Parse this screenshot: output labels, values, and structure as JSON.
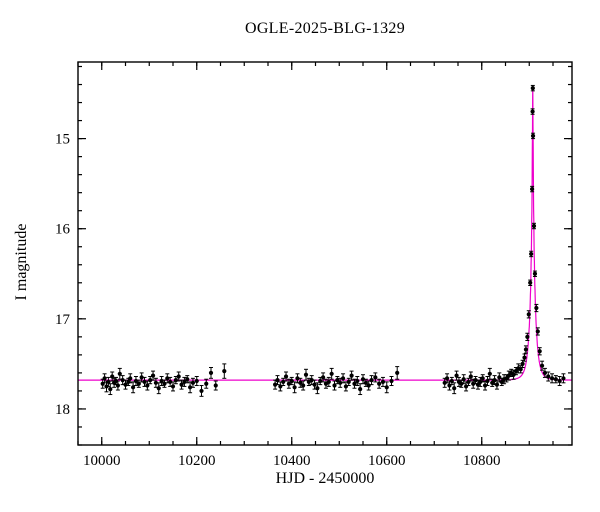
{
  "chart_data": {
    "type": "scatter",
    "title": "OGLE-2025-BLG-1329",
    "xlabel": "HJD - 2450000",
    "ylabel": "I magnitude",
    "xlim": [
      9950,
      10990
    ],
    "ylim_top_to_bottom": [
      14.15,
      18.4
    ],
    "y_axis_inverted": true,
    "x_major_ticks": [
      10000,
      10200,
      10400,
      10600,
      10800
    ],
    "x_minor_step": 50,
    "y_major_ticks": [
      15,
      16,
      17,
      18
    ],
    "y_minor_step": 0.2,
    "grid": false,
    "legend": false,
    "point_color": "#000000",
    "model_color": "#ee00cc",
    "model": {
      "type": "paczynski_microlensing",
      "t0": 10907.4,
      "tE": 11,
      "u0": 0.05,
      "baseline_mag": 17.68
    },
    "points": [
      [
        10002,
        17.72,
        0.05
      ],
      [
        10006,
        17.66,
        0.05
      ],
      [
        10010,
        17.75,
        0.06
      ],
      [
        10014,
        17.7,
        0.05
      ],
      [
        10018,
        17.78,
        0.06
      ],
      [
        10022,
        17.64,
        0.05
      ],
      [
        10026,
        17.71,
        0.05
      ],
      [
        10030,
        17.69,
        0.04
      ],
      [
        10034,
        17.74,
        0.05
      ],
      [
        10038,
        17.61,
        0.06
      ],
      [
        10044,
        17.68,
        0.05
      ],
      [
        10050,
        17.73,
        0.05
      ],
      [
        10056,
        17.7,
        0.04
      ],
      [
        10060,
        17.66,
        0.05
      ],
      [
        10066,
        17.76,
        0.06
      ],
      [
        10072,
        17.69,
        0.05
      ],
      [
        10078,
        17.72,
        0.04
      ],
      [
        10084,
        17.65,
        0.05
      ],
      [
        10090,
        17.7,
        0.05
      ],
      [
        10096,
        17.74,
        0.05
      ],
      [
        10102,
        17.68,
        0.04
      ],
      [
        10108,
        17.63,
        0.05
      ],
      [
        10114,
        17.71,
        0.05
      ],
      [
        10120,
        17.77,
        0.06
      ],
      [
        10126,
        17.69,
        0.05
      ],
      [
        10132,
        17.72,
        0.04
      ],
      [
        10138,
        17.66,
        0.05
      ],
      [
        10144,
        17.7,
        0.05
      ],
      [
        10150,
        17.75,
        0.05
      ],
      [
        10156,
        17.68,
        0.04
      ],
      [
        10162,
        17.64,
        0.05
      ],
      [
        10168,
        17.73,
        0.05
      ],
      [
        10174,
        17.7,
        0.05
      ],
      [
        10180,
        17.67,
        0.04
      ],
      [
        10186,
        17.76,
        0.06
      ],
      [
        10192,
        17.71,
        0.05
      ],
      [
        10200,
        17.69,
        0.05
      ],
      [
        10210,
        17.8,
        0.06
      ],
      [
        10220,
        17.72,
        0.05
      ],
      [
        10230,
        17.6,
        0.06
      ],
      [
        10240,
        17.74,
        0.05
      ],
      [
        10258,
        17.58,
        0.08
      ],
      [
        10365,
        17.73,
        0.05
      ],
      [
        10370,
        17.68,
        0.05
      ],
      [
        10376,
        17.75,
        0.05
      ],
      [
        10382,
        17.7,
        0.04
      ],
      [
        10388,
        17.64,
        0.05
      ],
      [
        10394,
        17.72,
        0.05
      ],
      [
        10400,
        17.69,
        0.04
      ],
      [
        10406,
        17.76,
        0.06
      ],
      [
        10412,
        17.66,
        0.05
      ],
      [
        10418,
        17.71,
        0.05
      ],
      [
        10424,
        17.74,
        0.05
      ],
      [
        10430,
        17.62,
        0.06
      ],
      [
        10436,
        17.7,
        0.04
      ],
      [
        10442,
        17.68,
        0.05
      ],
      [
        10448,
        17.73,
        0.05
      ],
      [
        10454,
        17.77,
        0.06
      ],
      [
        10460,
        17.69,
        0.04
      ],
      [
        10466,
        17.65,
        0.05
      ],
      [
        10472,
        17.72,
        0.05
      ],
      [
        10478,
        17.7,
        0.05
      ],
      [
        10484,
        17.61,
        0.06
      ],
      [
        10490,
        17.74,
        0.05
      ],
      [
        10496,
        17.68,
        0.04
      ],
      [
        10502,
        17.71,
        0.05
      ],
      [
        10508,
        17.66,
        0.05
      ],
      [
        10514,
        17.75,
        0.05
      ],
      [
        10520,
        17.7,
        0.04
      ],
      [
        10526,
        17.63,
        0.05
      ],
      [
        10532,
        17.72,
        0.05
      ],
      [
        10538,
        17.69,
        0.05
      ],
      [
        10544,
        17.78,
        0.06
      ],
      [
        10550,
        17.67,
        0.05
      ],
      [
        10556,
        17.71,
        0.04
      ],
      [
        10562,
        17.74,
        0.05
      ],
      [
        10568,
        17.68,
        0.05
      ],
      [
        10576,
        17.65,
        0.05
      ],
      [
        10584,
        17.72,
        0.05
      ],
      [
        10592,
        17.7,
        0.05
      ],
      [
        10600,
        17.76,
        0.06
      ],
      [
        10610,
        17.69,
        0.05
      ],
      [
        10622,
        17.6,
        0.07
      ],
      [
        10722,
        17.71,
        0.05
      ],
      [
        10727,
        17.66,
        0.05
      ],
      [
        10732,
        17.74,
        0.05
      ],
      [
        10737,
        17.69,
        0.04
      ],
      [
        10742,
        17.77,
        0.06
      ],
      [
        10747,
        17.63,
        0.05
      ],
      [
        10752,
        17.7,
        0.05
      ],
      [
        10757,
        17.72,
        0.04
      ],
      [
        10762,
        17.67,
        0.05
      ],
      [
        10767,
        17.75,
        0.05
      ],
      [
        10772,
        17.7,
        0.04
      ],
      [
        10777,
        17.64,
        0.05
      ],
      [
        10782,
        17.72,
        0.05
      ],
      [
        10787,
        17.68,
        0.04
      ],
      [
        10792,
        17.73,
        0.05
      ],
      [
        10797,
        17.7,
        0.05
      ],
      [
        10802,
        17.66,
        0.04
      ],
      [
        10807,
        17.74,
        0.05
      ],
      [
        10812,
        17.69,
        0.05
      ],
      [
        10817,
        17.61,
        0.06
      ],
      [
        10822,
        17.71,
        0.04
      ],
      [
        10827,
        17.68,
        0.05
      ],
      [
        10832,
        17.73,
        0.05
      ],
      [
        10837,
        17.65,
        0.05
      ],
      [
        10842,
        17.7,
        0.04
      ],
      [
        10847,
        17.67,
        0.05
      ],
      [
        10852,
        17.66,
        0.04
      ],
      [
        10857,
        17.63,
        0.05
      ],
      [
        10862,
        17.6,
        0.04
      ],
      [
        10867,
        17.62,
        0.05
      ],
      [
        10872,
        17.58,
        0.04
      ],
      [
        10877,
        17.55,
        0.05
      ],
      [
        10882,
        17.56,
        0.04
      ],
      [
        10886,
        17.5,
        0.04
      ],
      [
        10890,
        17.43,
        0.04
      ],
      [
        10893,
        17.34,
        0.04
      ],
      [
        10896,
        17.2,
        0.04
      ],
      [
        10899,
        16.95,
        0.04
      ],
      [
        10902,
        16.6,
        0.03
      ],
      [
        10904,
        16.28,
        0.03
      ],
      [
        10906,
        15.56,
        0.03
      ],
      [
        10907,
        14.7,
        0.03
      ],
      [
        10907.5,
        14.44,
        0.03
      ],
      [
        10908,
        14.97,
        0.03
      ],
      [
        10910,
        15.97,
        0.03
      ],
      [
        10912,
        16.5,
        0.03
      ],
      [
        10915,
        16.88,
        0.04
      ],
      [
        10918,
        17.14,
        0.04
      ],
      [
        10922,
        17.36,
        0.04
      ],
      [
        10927,
        17.52,
        0.05
      ],
      [
        10933,
        17.6,
        0.05
      ],
      [
        10940,
        17.64,
        0.05
      ],
      [
        10948,
        17.66,
        0.05
      ],
      [
        10956,
        17.67,
        0.04
      ],
      [
        10964,
        17.69,
        0.05
      ],
      [
        10972,
        17.66,
        0.05
      ]
    ]
  }
}
